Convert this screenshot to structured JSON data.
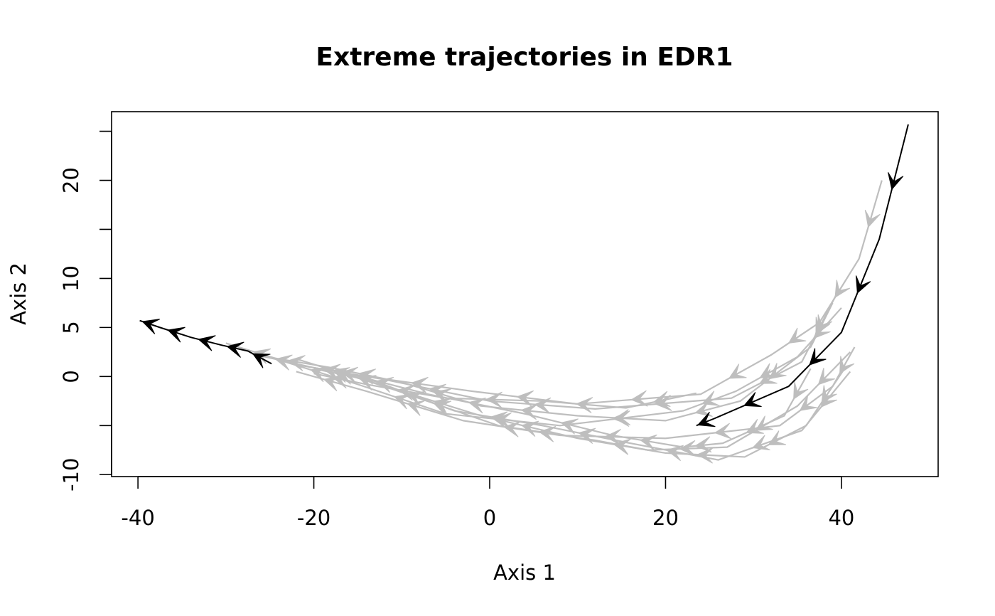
{
  "chart_data": {
    "type": "line",
    "title": "Extreme trajectories in EDR1",
    "xlabel": "Axis 1",
    "ylabel": "Axis 2",
    "xlim": [
      -43,
      51
    ],
    "ylim": [
      -10.2,
      27
    ],
    "x_ticks": [
      -40,
      -20,
      0,
      20,
      40
    ],
    "x_tick_labels": [
      "-40",
      "-20",
      "0",
      "20",
      "40"
    ],
    "y_ticks": [
      -10,
      -5,
      0,
      5,
      10,
      15,
      20,
      25
    ],
    "y_tick_labels": [
      "-10",
      "",
      "0",
      "5",
      "10",
      "",
      "20",
      ""
    ],
    "grid": false,
    "legend": "none",
    "colors": {
      "background_trajectories": "#bebebe",
      "extreme_trajectories": "#000000"
    },
    "series": [
      {
        "group": "background",
        "points": [
          [
            44.6,
            20.0
          ],
          [
            42.0,
            12.0
          ],
          [
            37.5,
            5.5
          ],
          [
            32.0,
            2.2
          ],
          [
            24.0,
            -1.8
          ],
          [
            10.0,
            -2.8
          ],
          [
            -2.0,
            -1.5
          ],
          [
            -14.0,
            0.0
          ],
          [
            -22.0,
            1.2
          ],
          [
            -30.0,
            3.4
          ]
        ]
      },
      {
        "group": "background",
        "points": [
          [
            39.5,
            8.5
          ],
          [
            35.5,
            1.5
          ],
          [
            27.5,
            -2.2
          ],
          [
            12.0,
            -3.3
          ],
          [
            0.0,
            -2.5
          ],
          [
            -12.0,
            -0.3
          ],
          [
            -20.0,
            0.9
          ],
          [
            -27.0,
            2.3
          ]
        ]
      },
      {
        "group": "background",
        "points": [
          [
            40.0,
            7.0
          ],
          [
            35.0,
            2.0
          ],
          [
            28.0,
            -1.5
          ],
          [
            22.0,
            -3.5
          ],
          [
            8.0,
            -5.0
          ],
          [
            -5.0,
            -3.8
          ],
          [
            -15.0,
            -0.8
          ],
          [
            -24.0,
            1.7
          ]
        ]
      },
      {
        "group": "background",
        "points": [
          [
            41.5,
            3.0
          ],
          [
            39.0,
            -1.0
          ],
          [
            33.0,
            -5.0
          ],
          [
            20.0,
            -6.3
          ],
          [
            8.0,
            -6.0
          ],
          [
            -3.0,
            -4.5
          ],
          [
            -14.0,
            -1.5
          ],
          [
            -22.0,
            0.5
          ]
        ]
      },
      {
        "group": "background",
        "points": [
          [
            41.0,
            2.5
          ],
          [
            35.0,
            -3.0
          ],
          [
            27.0,
            -7.2
          ],
          [
            18.0,
            -7.5
          ],
          [
            12.0,
            -6.5
          ],
          [
            1.0,
            -5.0
          ],
          [
            -12.0,
            -1.0
          ],
          [
            -22.0,
            1.8
          ]
        ]
      },
      {
        "group": "background",
        "points": [
          [
            40.5,
            1.0
          ],
          [
            36.0,
            -5.0
          ],
          [
            29.0,
            -8.2
          ],
          [
            20.0,
            -7.8
          ],
          [
            10.0,
            -6.3
          ],
          [
            -1.0,
            -4.0
          ],
          [
            -10.0,
            -1.5
          ],
          [
            -18.0,
            0.7
          ]
        ]
      },
      {
        "group": "background",
        "points": [
          [
            41.0,
            0.5
          ],
          [
            35.5,
            -5.5
          ],
          [
            26.0,
            -8.5
          ],
          [
            16.0,
            -6.8
          ],
          [
            6.0,
            -5.0
          ],
          [
            -4.0,
            -3.5
          ],
          [
            -13.0,
            -0.5
          ],
          [
            -20.0,
            0.8
          ]
        ]
      },
      {
        "group": "background",
        "points": [
          [
            36.5,
            0.8
          ],
          [
            33.5,
            -4.0
          ],
          [
            26.5,
            -6.8
          ],
          [
            22.0,
            -7.2
          ],
          [
            14.0,
            -6.0
          ],
          [
            4.0,
            -3.8
          ],
          [
            -7.0,
            -1.8
          ],
          [
            -17.0,
            0.5
          ]
        ]
      },
      {
        "group": "background",
        "points": [
          [
            23.5,
            -1.7
          ],
          [
            15.5,
            -3.2
          ],
          [
            6.0,
            -2.5
          ],
          [
            -5.0,
            -2.2
          ],
          [
            -14.0,
            -0.8
          ],
          [
            -20.0,
            0.3
          ]
        ]
      },
      {
        "group": "background",
        "points": [
          [
            39.0,
            7.5
          ],
          [
            36.5,
            3.0
          ],
          [
            28.5,
            -2.5
          ],
          [
            20.0,
            -4.5
          ],
          [
            10.0,
            -4.0
          ],
          [
            -1.0,
            -3.0
          ],
          [
            -10.0,
            -0.6
          ],
          [
            -18.0,
            0.9
          ],
          [
            -26.0,
            2.1
          ]
        ]
      },
      {
        "group": "extreme",
        "points": [
          [
            47.6,
            25.7
          ],
          [
            44.3,
            14.0
          ],
          [
            40.0,
            4.5
          ],
          [
            34.0,
            -1.0
          ],
          [
            25.5,
            -4.3
          ],
          [
            23.5,
            -5.0
          ]
        ]
      },
      {
        "group": "extreme",
        "points": [
          [
            -24.8,
            1.3
          ],
          [
            -27.5,
            2.6
          ],
          [
            -30.5,
            3.2
          ],
          [
            -34.0,
            4.0
          ],
          [
            -37.5,
            5.0
          ],
          [
            -39.8,
            5.7
          ]
        ]
      }
    ]
  }
}
